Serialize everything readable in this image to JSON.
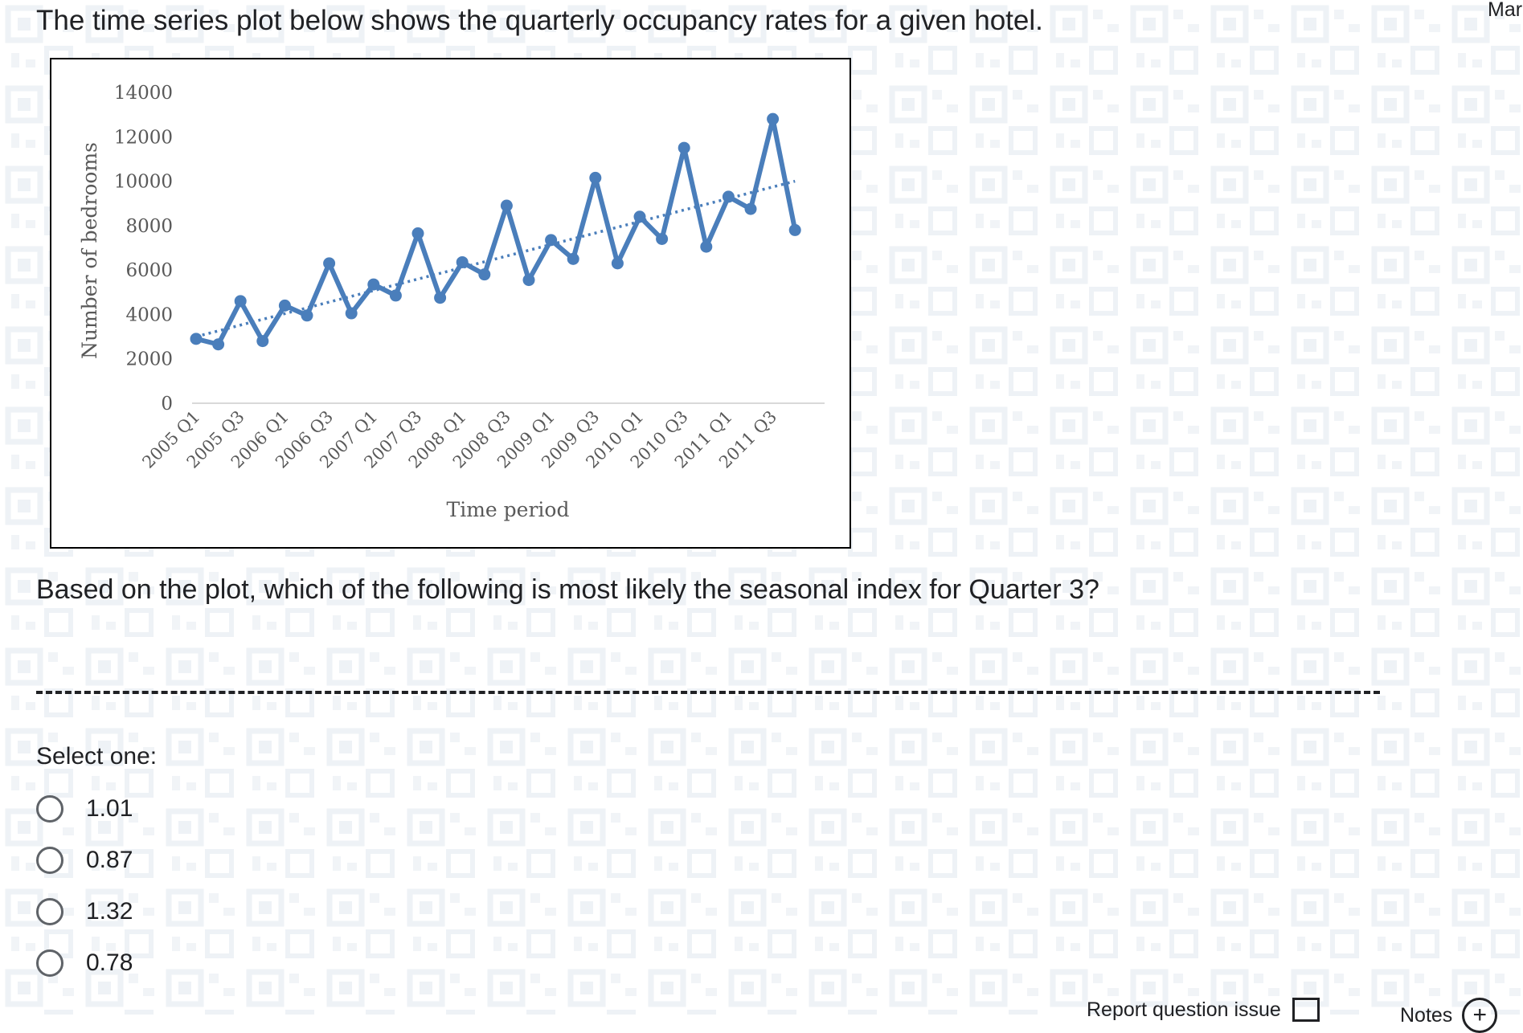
{
  "header": {
    "intro": "The time series plot below shows the quarterly occupancy rates for a given hotel.",
    "top_right": "Mar"
  },
  "question": {
    "text": "Based on the plot, which of the following is most likely the seasonal index for Quarter 3?",
    "select_label": "Select one:",
    "options": [
      "1.01",
      "0.87",
      "1.32",
      "0.78"
    ]
  },
  "footer": {
    "report": "Report question issue",
    "notes": "Notes",
    "plus_glyph": "+"
  },
  "chart_data": {
    "type": "line",
    "title": "",
    "xlabel": "Time period",
    "ylabel": "Number of bedrooms",
    "ylim": [
      0,
      14000
    ],
    "yticks": [
      0,
      2000,
      4000,
      6000,
      8000,
      10000,
      12000,
      14000
    ],
    "x": [
      "2005 Q1",
      "2005 Q2",
      "2005 Q3",
      "2005 Q4",
      "2006 Q1",
      "2006 Q2",
      "2006 Q3",
      "2006 Q4",
      "2007 Q1",
      "2007 Q2",
      "2007 Q3",
      "2007 Q4",
      "2008 Q1",
      "2008 Q2",
      "2008 Q3",
      "2008 Q4",
      "2009 Q1",
      "2009 Q2",
      "2009 Q3",
      "2009 Q4",
      "2010 Q1",
      "2010 Q2",
      "2010 Q3",
      "2010 Q4",
      "2011 Q1",
      "2011 Q2",
      "2011 Q3",
      "2011 Q4"
    ],
    "xtick_labels": [
      "2005 Q1",
      "2005 Q3",
      "2006 Q1",
      "2006 Q3",
      "2007 Q1",
      "2007 Q3",
      "2008 Q1",
      "2008 Q3",
      "2009 Q1",
      "2009 Q3",
      "2010 Q1",
      "2010 Q3",
      "2011 Q1",
      "2011 Q3"
    ],
    "series": [
      {
        "values": [
          2900,
          2650,
          4600,
          2800,
          4400,
          3950,
          6300,
          4050,
          5350,
          4850,
          7650,
          4750,
          6350,
          5800,
          8900,
          5550,
          7350,
          6500,
          10150,
          6300,
          8400,
          7400,
          11500,
          7050,
          9300,
          8750,
          12800,
          7800
        ],
        "color": "#4a7ebb"
      }
    ],
    "trendline": {
      "style": "dotted",
      "color": "#4a7ebb",
      "start": 3000,
      "end": 10000
    },
    "grid": false,
    "legend": "none"
  }
}
